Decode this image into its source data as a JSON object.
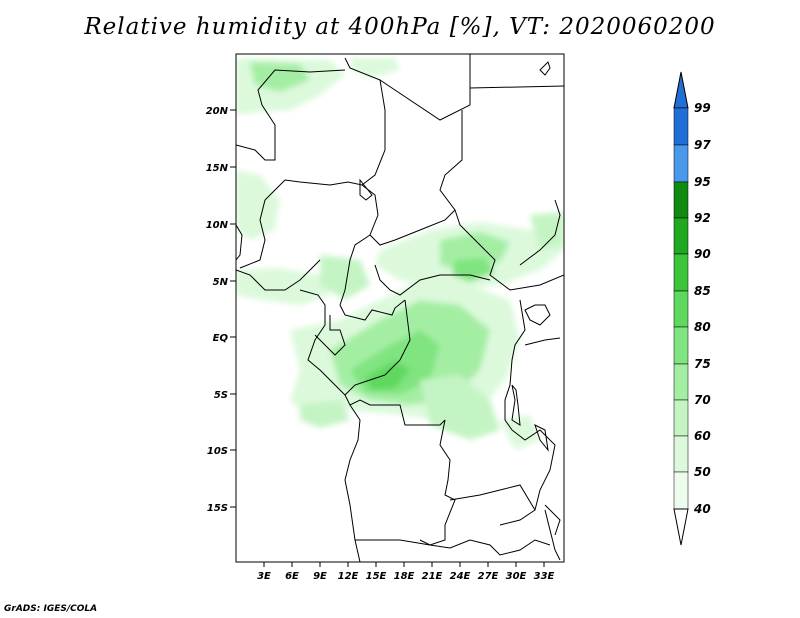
{
  "title": "Relative humidity at 400hPa [%], VT: 2020060200",
  "credit": "GrADS: IGES/COLA",
  "map": {
    "lat_labels": [
      "20N",
      "15N",
      "10N",
      "5N",
      "EQ",
      "5S",
      "10S",
      "15S"
    ],
    "lon_labels": [
      "3E",
      "6E",
      "9E",
      "12E",
      "15E",
      "18E",
      "21E",
      "24E",
      "27E",
      "30E",
      "33E"
    ]
  },
  "colorbar": {
    "levels": [
      "99",
      "97",
      "95",
      "92",
      "90",
      "85",
      "80",
      "75",
      "70",
      "60",
      "50",
      "40"
    ],
    "colors": {
      "97-99": "#1f6fd6",
      "95-97": "#4a98ea",
      "92-95": "#128a12",
      "90-92": "#20a820",
      "85-90": "#3cc43c",
      "80-85": "#5ed85e",
      "75-80": "#80e480",
      "70-75": "#a4eea4",
      "60-70": "#c4f4c4",
      "50-60": "#dcf9dc",
      "40-50": "#eefcee",
      "top": "#1f6fd6",
      "bottom": "#ffffff"
    }
  }
}
